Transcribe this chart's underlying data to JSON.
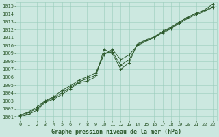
{
  "xlabel": "Graphe pression niveau de la mer (hPa)",
  "background_color": "#cce8e0",
  "plot_background": "#cce8e0",
  "grid_color": "#99ccbb",
  "line_color": "#2d5a2d",
  "x": [
    0,
    1,
    2,
    3,
    4,
    5,
    6,
    7,
    8,
    9,
    10,
    11,
    12,
    13,
    14,
    15,
    16,
    17,
    18,
    19,
    20,
    21,
    22,
    23
  ],
  "series1": [
    1001.0,
    1001.3,
    1001.8,
    1002.8,
    1003.2,
    1003.8,
    1004.5,
    1005.3,
    1005.5,
    1006.0,
    1009.5,
    1009.0,
    1007.0,
    1007.8,
    1010.2,
    1010.7,
    1011.1,
    1011.8,
    1012.3,
    1013.0,
    1013.5,
    1014.1,
    1014.4,
    1014.9
  ],
  "series2": [
    1001.2,
    1001.6,
    1002.2,
    1003.0,
    1003.5,
    1004.3,
    1004.9,
    1005.6,
    1006.0,
    1006.5,
    1008.8,
    1009.5,
    1008.2,
    1008.8,
    1010.0,
    1010.5,
    1011.0,
    1011.6,
    1012.1,
    1012.8,
    1013.4,
    1013.9,
    1014.3,
    1014.8
  ],
  "series3": [
    1001.1,
    1001.5,
    1002.0,
    1002.9,
    1003.4,
    1004.0,
    1004.7,
    1005.4,
    1005.8,
    1006.2,
    1009.0,
    1009.2,
    1007.5,
    1008.2,
    1010.1,
    1010.6,
    1011.0,
    1011.7,
    1012.2,
    1012.9,
    1013.6,
    1014.0,
    1014.5,
    1015.2
  ],
  "ylim_min": 1001,
  "ylim_max": 1015,
  "xlim_min": 0,
  "xlim_max": 23,
  "yticks": [
    1001,
    1002,
    1003,
    1004,
    1005,
    1006,
    1007,
    1008,
    1009,
    1010,
    1011,
    1012,
    1013,
    1014,
    1015
  ],
  "xticks": [
    0,
    1,
    2,
    3,
    4,
    5,
    6,
    7,
    8,
    9,
    10,
    11,
    12,
    13,
    14,
    15,
    16,
    17,
    18,
    19,
    20,
    21,
    22,
    23
  ],
  "ylabel_fontsize": 5,
  "xlabel_fontsize": 6,
  "tick_fontsize": 5,
  "linewidth": 0.7,
  "markersize": 3,
  "marker": "+"
}
